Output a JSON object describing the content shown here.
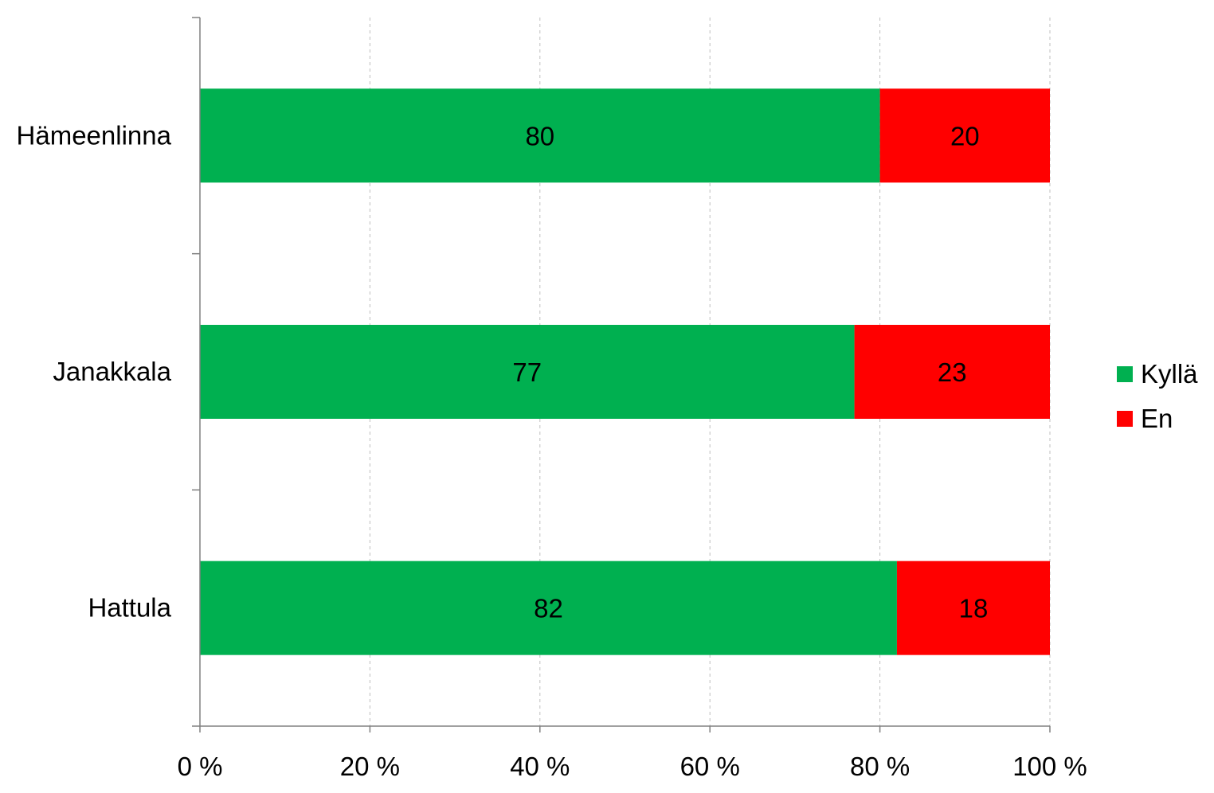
{
  "chart_data": {
    "type": "bar",
    "orientation": "horizontal",
    "stacked": "percent",
    "categories": [
      "Hämeenlinna",
      "Janakkala",
      "Hattula"
    ],
    "series": [
      {
        "name": "Kyllä",
        "color": "#00b050",
        "values": [
          80,
          77,
          82
        ],
        "labels": [
          "80",
          "77",
          "82"
        ]
      },
      {
        "name": "En",
        "color": "#ff0000",
        "values": [
          20,
          23,
          18
        ],
        "labels": [
          "20",
          "23",
          "18"
        ]
      }
    ],
    "x_ticks": [
      "0 %",
      "20 %",
      "40 %",
      "60 %",
      "80 %",
      "100 %"
    ],
    "xlim": [
      0,
      100
    ],
    "grid": true,
    "legend_position": "right"
  }
}
